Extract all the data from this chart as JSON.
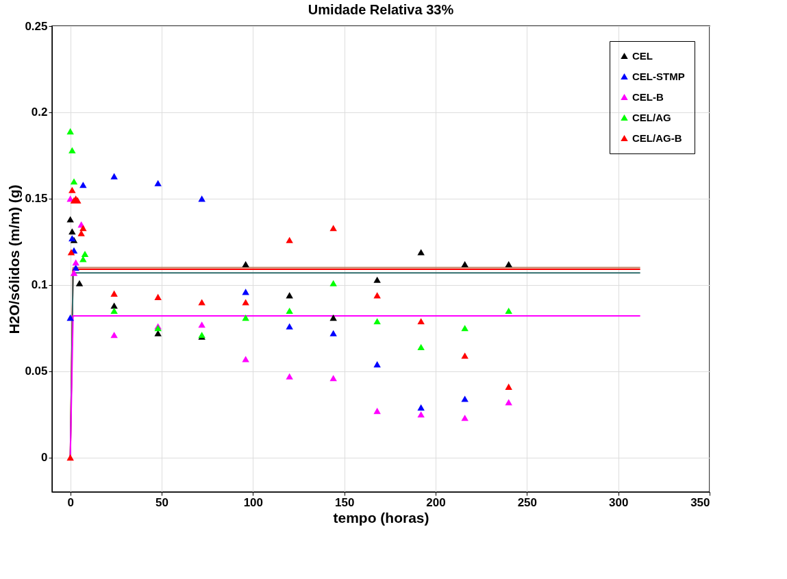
{
  "chart_data": {
    "type": "scatter",
    "title": "Umidade Relativa 33%",
    "xlabel": "tempo (horas)",
    "ylabel": "H2O/sólidos (m/m) (g)",
    "xlim": [
      -10,
      350
    ],
    "xticks": [
      0,
      50,
      100,
      150,
      200,
      250,
      300,
      350
    ],
    "ylim": [
      -0.02,
      0.25
    ],
    "yticks": [
      0,
      0.05,
      0.1,
      0.15,
      0.2,
      0.25
    ],
    "grid": true,
    "legend": "top right",
    "marker": "triangle",
    "series": [
      {
        "name": "CEL",
        "color": "#000000",
        "x": [
          0,
          1,
          2,
          5,
          24,
          48,
          72,
          96,
          120,
          144,
          168,
          192,
          216,
          240
        ],
        "values": [
          0.138,
          0.131,
          0.126,
          0.101,
          0.088,
          0.072,
          0.07,
          0.112,
          0.094,
          0.081,
          0.103,
          0.119,
          0.112,
          0.112
        ]
      },
      {
        "name": "CEL-STMP",
        "color": "#0000ff",
        "x": [
          0,
          1,
          2,
          3,
          7,
          24,
          48,
          72,
          96,
          120,
          144,
          168,
          192,
          216
        ],
        "values": [
          0.081,
          0.127,
          0.12,
          0.11,
          0.158,
          0.163,
          0.159,
          0.15,
          0.096,
          0.076,
          0.072,
          0.054,
          0.029,
          0.034
        ]
      },
      {
        "name": "CEL-B",
        "color": "#ff00ff",
        "x": [
          0,
          2,
          3,
          6,
          24,
          48,
          72,
          96,
          120,
          144,
          168,
          192,
          216,
          240
        ],
        "values": [
          0.15,
          0.107,
          0.113,
          0.135,
          0.071,
          0.076,
          0.077,
          0.057,
          0.047,
          0.046,
          0.027,
          0.025,
          0.023,
          0.032
        ]
      },
      {
        "name": "CEL/AG",
        "color": "#00ff00",
        "x": [
          0,
          1,
          2,
          7,
          8,
          24,
          48,
          72,
          96,
          120,
          144,
          168,
          192,
          216,
          240
        ],
        "values": [
          0.189,
          0.178,
          0.16,
          0.115,
          0.118,
          0.085,
          0.075,
          0.071,
          0.081,
          0.085,
          0.101,
          0.079,
          0.064,
          0.075,
          0.085
        ]
      },
      {
        "name": "CEL/AG-B",
        "color": "#ff0000",
        "x": [
          0,
          0.5,
          1,
          2,
          3,
          4,
          6,
          7,
          24,
          48,
          72,
          96,
          120,
          144,
          168,
          192,
          216,
          240
        ],
        "values": [
          0,
          0.119,
          0.155,
          0.149,
          0.15,
          0.149,
          0.13,
          0.133,
          0.095,
          0.093,
          0.09,
          0.09,
          0.126,
          0.133,
          0.094,
          0.079,
          0.059,
          0.041
        ]
      },
      {
        "type": "line",
        "marker": "none",
        "color": "#c08060",
        "x": [
          0,
          1.5,
          312
        ],
        "values": [
          0,
          0.11,
          0.11
        ]
      },
      {
        "type": "line",
        "marker": "none",
        "color": "#ff0000",
        "x": [
          0,
          1.5,
          312
        ],
        "values": [
          0,
          0.109,
          0.109
        ]
      },
      {
        "type": "line",
        "marker": "none",
        "color": "#2e6b6b",
        "x": [
          0,
          1.5,
          312
        ],
        "values": [
          0,
          0.107,
          0.107
        ]
      },
      {
        "type": "line",
        "marker": "none",
        "color": "#ff00ff",
        "x": [
          0,
          1.5,
          312
        ],
        "values": [
          0,
          0.082,
          0.082
        ]
      }
    ]
  }
}
